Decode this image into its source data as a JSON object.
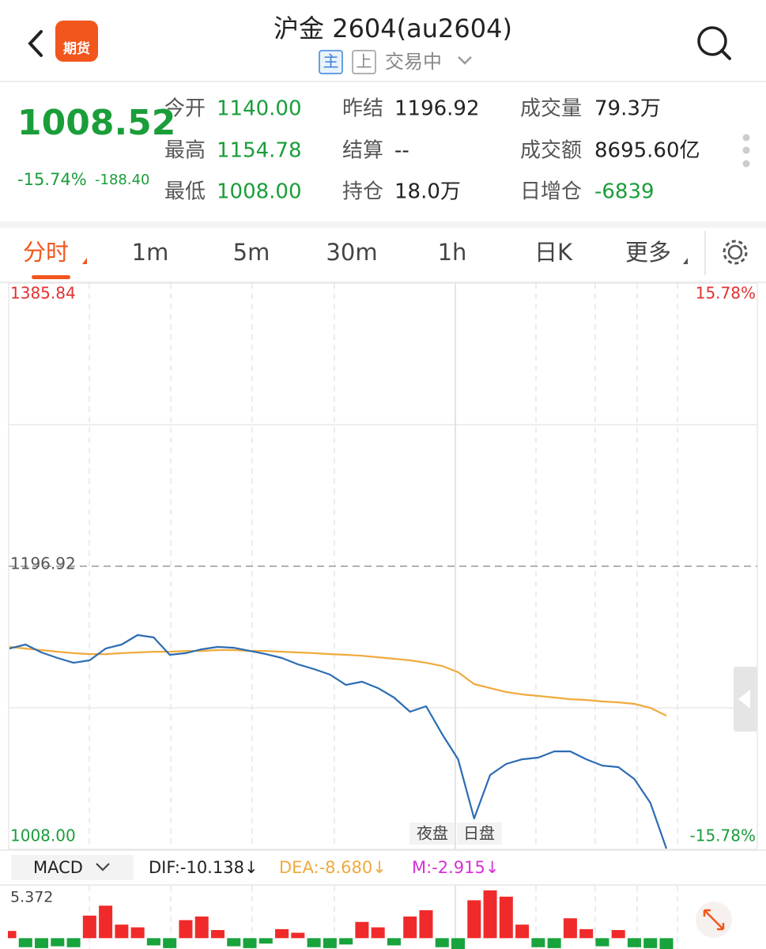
{
  "header": {
    "title": "沪金 2604(au2604)",
    "logo": "期货",
    "badges": [
      "主",
      "上"
    ],
    "status": "交易中"
  },
  "quote": {
    "price": "1008.52",
    "change_pct": "-15.74%",
    "change": "-188.40",
    "fields": [
      {
        "label": "今开",
        "value": "1140.00",
        "color": "#1a9e3a"
      },
      {
        "label": "昨结",
        "value": "1196.92",
        "color": "#222222"
      },
      {
        "label": "成交量",
        "value": "79.3万",
        "color": "#222222"
      },
      {
        "label": "最高",
        "value": "1154.78",
        "color": "#1a9e3a"
      },
      {
        "label": "结算",
        "value": "--",
        "color": "#222222"
      },
      {
        "label": "成交额",
        "value": "8695.60亿",
        "color": "#222222"
      },
      {
        "label": "最低",
        "value": "1008.00",
        "color": "#1a9e3a"
      },
      {
        "label": "持仓",
        "value": "18.0万",
        "color": "#222222"
      },
      {
        "label": "日增仓",
        "value": "-6839",
        "color": "#1a9e3a"
      }
    ]
  },
  "tabs": [
    "分时",
    "1m",
    "5m",
    "30m",
    "1h",
    "日K",
    "更多"
  ],
  "chart_data": [
    {
      "type": "line",
      "series": [
        {
          "name": "price",
          "color": "#2c6cb3",
          "values": [
            1142.0,
            1144.7,
            1139.4,
            1135.7,
            1132.5,
            1134.1,
            1142.0,
            1144.7,
            1151.0,
            1149.4,
            1137.8,
            1138.9,
            1141.5,
            1143.1,
            1142.5,
            1140.4,
            1138.3,
            1135.7,
            1131.5,
            1128.3,
            1124.6,
            1117.7,
            1119.9,
            1115.6,
            1109.3,
            1099.8,
            1103.5,
            1085.0,
            1068.1,
            1028.6,
            1057.6,
            1065.0,
            1068.1,
            1069.2,
            1073.4,
            1073.4,
            1068.1,
            1063.9,
            1062.9,
            1054.9,
            1039.1,
            1008.52
          ]
        },
        {
          "name": "average",
          "color": "#f0aa3c",
          "values": [
            1143.1,
            1142.0,
            1141.0,
            1139.9,
            1138.9,
            1138.3,
            1138.3,
            1138.9,
            1139.4,
            1139.9,
            1139.9,
            1140.4,
            1140.4,
            1141.0,
            1141.0,
            1140.4,
            1140.4,
            1139.9,
            1139.4,
            1138.9,
            1138.3,
            1137.8,
            1137.2,
            1136.2,
            1135.2,
            1134.1,
            1132.5,
            1130.4,
            1126.2,
            1118.3,
            1115.6,
            1113.0,
            1111.4,
            1110.4,
            1109.3,
            1108.2,
            1107.7,
            1106.7,
            1106.1,
            1105.1,
            1102.4,
            1097.2
          ]
        }
      ],
      "ylim": [
        1008.0,
        1385.84
      ],
      "yticks": [
        {
          "value": 1008.0,
          "label": "1008.00"
        },
        1196.92,
        1385.84
      ],
      "y2lim": [
        -15.78,
        15.78
      ],
      "y2ticks": [
        {
          "value": -15.78,
          "label": "-15.78%"
        },
        {
          "value": 15.78,
          "label": "15.78%"
        }
      ],
      "annotations": [
        "夜盘",
        "日盘"
      ]
    },
    {
      "type": "bar",
      "title": "MACD",
      "indicators": [
        {
          "text": "DIF:-10.138↓",
          "color": "#222222"
        },
        {
          "text": "DEA:-8.680↓",
          "color": "#f0aa3c"
        },
        {
          "text": "M:-2.915↓",
          "color": "#d630d6"
        }
      ],
      "values": [
        0.8,
        -1.0,
        -1.1,
        -0.9,
        -1.0,
        2.5,
        3.6,
        1.5,
        1.2,
        -0.8,
        -1.1,
        2.0,
        2.4,
        0.9,
        -0.9,
        -1.1,
        -0.6,
        1.0,
        0.6,
        -1.0,
        -1.1,
        -0.7,
        1.8,
        1.2,
        -0.8,
        2.4,
        3.1,
        -1.0,
        -1.2,
        4.2,
        5.3,
        4.6,
        1.5,
        -1.0,
        -1.1,
        2.2,
        1.0,
        -0.9,
        0.9,
        -1.0,
        -1.1,
        -1.2
      ],
      "ylim": [
        -1.2,
        5.372
      ],
      "yticks": [
        5.372
      ]
    }
  ]
}
